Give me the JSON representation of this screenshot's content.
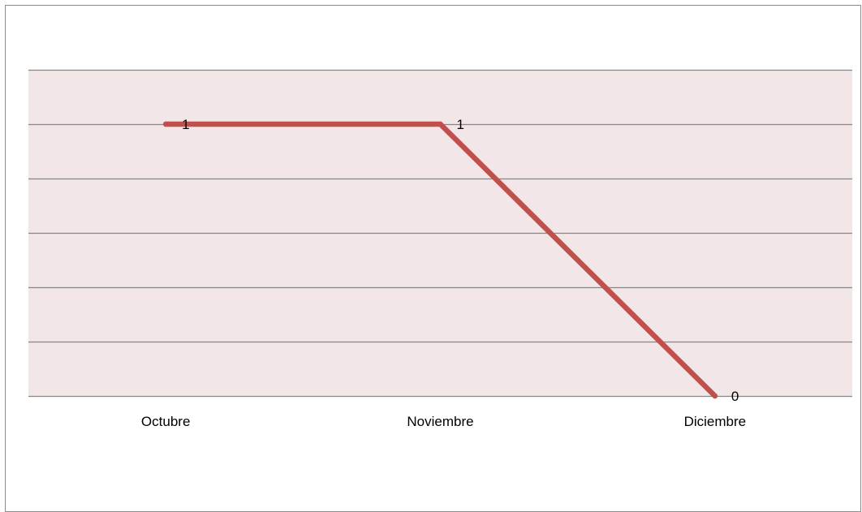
{
  "chart_data": {
    "type": "line",
    "categories": [
      "Octubre",
      "Noviembre",
      "Diciembre"
    ],
    "series": [
      {
        "values": [
          1,
          1,
          0
        ],
        "color": "#c0504d"
      }
    ],
    "data_labels": [
      "1",
      "1",
      "0"
    ],
    "ylim": [
      0,
      1.2
    ],
    "y_gridline_step": 0.2,
    "grid": true,
    "legend": "none",
    "plot_background": "#f2e6e6",
    "gridline_color": "#868686"
  }
}
